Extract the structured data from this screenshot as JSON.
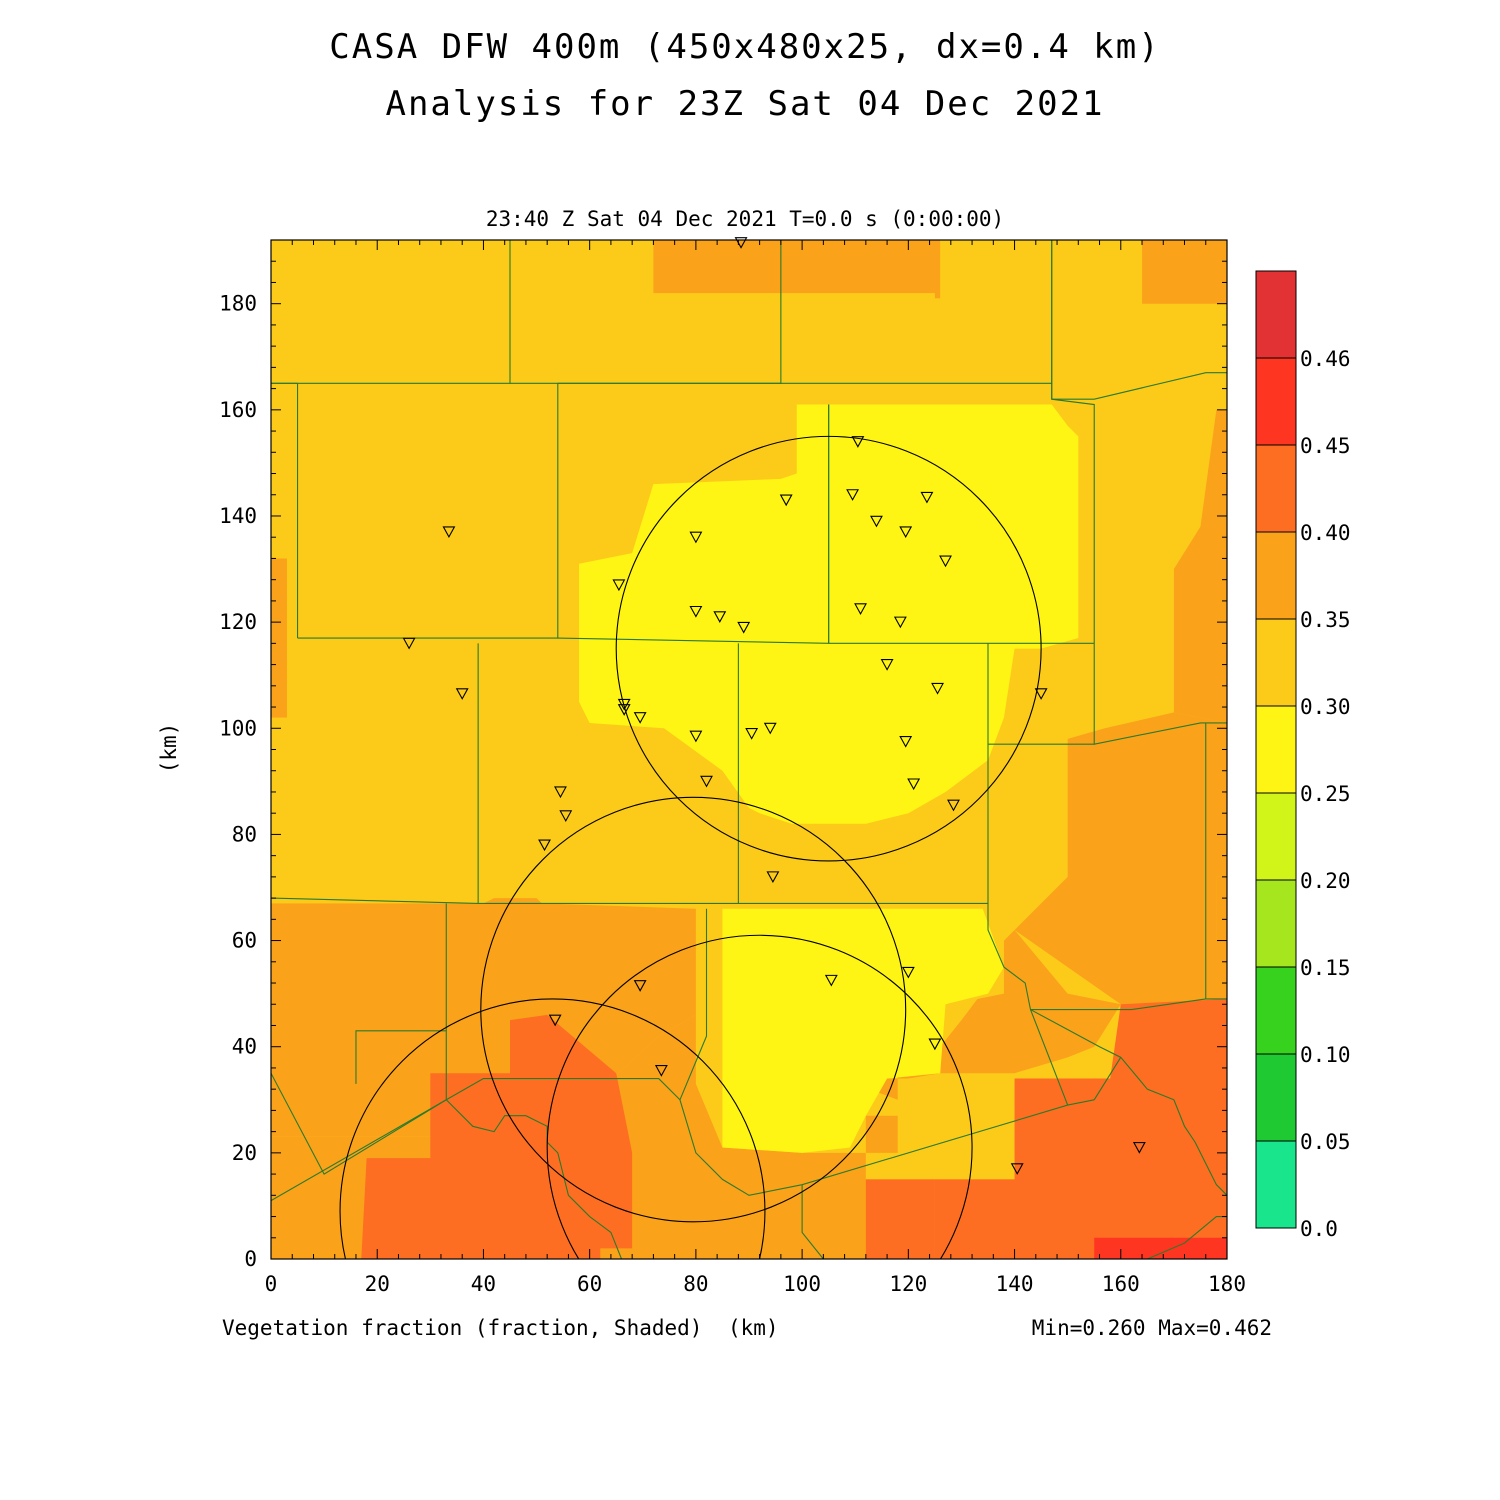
{
  "chart_data": {
    "type": "heatmap",
    "title": "CASA DFW 400m (450x480x25, dx=0.4 km)",
    "subtitle": "Analysis for 23Z Sat 04 Dec 2021",
    "time_label": "23:40 Z Sat 04 Dec 2021    T=0.0 s (0:00:00)",
    "variable_label": "Vegetation fraction (fraction, Shaded)",
    "xlabel": "(km)",
    "ylabel": "(km)",
    "stats_label": "Min=0.260 Max=0.462",
    "xlim": [
      0,
      180
    ],
    "ylim": [
      0,
      192
    ],
    "xticks": [
      0,
      20,
      40,
      60,
      80,
      100,
      120,
      140,
      160,
      180
    ],
    "yticks": [
      0,
      20,
      40,
      60,
      80,
      100,
      120,
      140,
      160,
      180
    ],
    "colorbar": {
      "levels": [
        "0.0",
        "0.05",
        "0.10",
        "0.15",
        "0.20",
        "0.25",
        "0.30",
        "0.35",
        "0.40",
        "0.45",
        "0.46"
      ],
      "colors": [
        "#19e68c",
        "#1ec932",
        "#37d21e",
        "#a5e61e",
        "#d2f519",
        "#fff514",
        "#fccb1a",
        "#fba21b",
        "#fd6e22",
        "#fe3520",
        "#e33233"
      ]
    },
    "regions": [
      {
        "value_bin": "0.30-0.35",
        "polygon": [
          [
            0,
            0
          ],
          [
            180,
            0
          ],
          [
            180,
            192
          ],
          [
            0,
            192
          ]
        ]
      },
      {
        "value_bin": "0.35-0.40",
        "polygon": [
          [
            72,
            182
          ],
          [
            125,
            182
          ],
          [
            125,
            181
          ],
          [
            126,
            181
          ],
          [
            126,
            192
          ],
          [
            72,
            192
          ]
        ]
      },
      {
        "value_bin": "0.35-0.40",
        "polygon": [
          [
            164,
            180
          ],
          [
            180,
            180
          ],
          [
            180,
            192
          ],
          [
            164,
            192
          ]
        ]
      },
      {
        "value_bin": "0.35-0.40",
        "polygon": [
          [
            0,
            67
          ],
          [
            40,
            67
          ],
          [
            42,
            68
          ],
          [
            50,
            68
          ],
          [
            51,
            67
          ],
          [
            80,
            66
          ],
          [
            80,
            46
          ],
          [
            73,
            42
          ],
          [
            60,
            30
          ],
          [
            52,
            26
          ],
          [
            50,
            23
          ],
          [
            0,
            23
          ]
        ]
      },
      {
        "value_bin": "0.35-0.40",
        "polygon": [
          [
            0,
            23
          ],
          [
            50,
            23
          ],
          [
            52,
            26
          ],
          [
            60,
            30
          ],
          [
            73,
            42
          ],
          [
            80,
            46
          ],
          [
            80,
            33
          ],
          [
            85,
            21
          ],
          [
            100,
            20
          ],
          [
            118,
            20
          ],
          [
            118,
            27
          ],
          [
            112,
            27
          ],
          [
            112,
            15
          ],
          [
            140,
            15
          ],
          [
            140,
            0
          ],
          [
            0,
            0
          ]
        ]
      },
      {
        "value_bin": "0.35-0.40",
        "polygon": [
          [
            140,
            15
          ],
          [
            140,
            33
          ],
          [
            160,
            34
          ],
          [
            160,
            48
          ],
          [
            174,
            50
          ],
          [
            180,
            50
          ],
          [
            180,
            60
          ],
          [
            178,
            60
          ],
          [
            178,
            72
          ],
          [
            180,
            72
          ],
          [
            180,
            0
          ],
          [
            140,
            0
          ]
        ]
      },
      {
        "value_bin": "0.35-0.40",
        "polygon": [
          [
            138,
            60
          ],
          [
            138,
            50
          ],
          [
            133,
            49
          ],
          [
            130,
            45
          ],
          [
            126,
            40
          ],
          [
            126,
            35
          ],
          [
            120,
            34
          ],
          [
            116,
            34
          ],
          [
            110,
            33
          ],
          [
            118,
            30
          ],
          [
            118,
            35
          ],
          [
            140,
            35
          ],
          [
            150,
            38
          ],
          [
            155,
            40
          ],
          [
            160,
            48
          ],
          [
            150,
            50
          ],
          [
            140,
            62
          ]
        ]
      },
      {
        "value_bin": "0.35-0.40",
        "polygon": [
          [
            140,
            62
          ],
          [
            150,
            72
          ],
          [
            150,
            98
          ],
          [
            157,
            100
          ],
          [
            170,
            103
          ],
          [
            180,
            101
          ],
          [
            180,
            72
          ],
          [
            178,
            72
          ],
          [
            178,
            60
          ],
          [
            180,
            60
          ],
          [
            180,
            50
          ],
          [
            160,
            48
          ]
        ]
      },
      {
        "value_bin": "0.35-0.40",
        "polygon": [
          [
            170,
            103
          ],
          [
            170,
            130
          ],
          [
            175,
            138
          ],
          [
            178,
            160
          ],
          [
            180,
            160
          ],
          [
            180,
            101
          ]
        ]
      },
      {
        "value_bin": "0.35-0.40",
        "polygon": [
          [
            0,
            102
          ],
          [
            3,
            102
          ],
          [
            3,
            132
          ],
          [
            0,
            132
          ]
        ]
      },
      {
        "value_bin": "0.40-0.45",
        "polygon": [
          [
            30,
            35
          ],
          [
            45,
            35
          ],
          [
            45,
            45
          ],
          [
            52,
            46
          ],
          [
            65,
            35
          ],
          [
            68,
            20
          ],
          [
            68,
            2
          ],
          [
            62,
            2
          ],
          [
            62,
            0
          ],
          [
            17,
            0
          ],
          [
            18,
            19
          ],
          [
            30,
            19
          ]
        ]
      },
      {
        "value_bin": "0.40-0.45",
        "polygon": [
          [
            112,
            15
          ],
          [
            125,
            15
          ],
          [
            125,
            0
          ],
          [
            112,
            0
          ]
        ]
      },
      {
        "value_bin": "0.40-0.45",
        "polygon": [
          [
            125,
            15
          ],
          [
            140,
            15
          ],
          [
            140,
            34
          ],
          [
            158,
            34
          ],
          [
            160,
            48
          ],
          [
            180,
            49
          ],
          [
            180,
            0
          ],
          [
            125,
            0
          ]
        ]
      },
      {
        "value_bin": "0.45-0.46",
        "polygon": [
          [
            155,
            0
          ],
          [
            180,
            0
          ],
          [
            180,
            4
          ],
          [
            155,
            4
          ]
        ]
      },
      {
        "value_bin": "0.25-0.30",
        "polygon": [
          [
            99,
            161
          ],
          [
            147,
            161
          ],
          [
            150,
            157
          ],
          [
            152,
            155
          ],
          [
            152,
            117
          ],
          [
            145,
            115
          ],
          [
            140,
            115
          ],
          [
            138,
            102
          ],
          [
            135,
            94
          ],
          [
            127,
            88
          ],
          [
            120,
            84
          ],
          [
            112,
            82
          ],
          [
            98,
            82
          ],
          [
            92,
            84
          ],
          [
            90,
            85
          ],
          [
            85,
            92
          ],
          [
            74,
            100
          ],
          [
            60,
            101
          ],
          [
            58,
            105
          ],
          [
            58,
            131
          ],
          [
            68,
            133
          ],
          [
            72,
            146
          ],
          [
            96,
            147
          ],
          [
            99,
            148
          ]
        ]
      },
      {
        "value_bin": "0.25-0.30",
        "polygon": [
          [
            85,
            66
          ],
          [
            134,
            66
          ],
          [
            138,
            55
          ],
          [
            135,
            50
          ],
          [
            127,
            48
          ],
          [
            126,
            35
          ],
          [
            116,
            34
          ],
          [
            112,
            27
          ],
          [
            109,
            21
          ],
          [
            100,
            20
          ],
          [
            85,
            21
          ]
        ]
      }
    ],
    "county_lines": [
      [
        [
          0,
          165
        ],
        [
          45,
          165
        ],
        [
          45,
          192
        ]
      ],
      [
        [
          45,
          165
        ],
        [
          96,
          165
        ],
        [
          96,
          192
        ]
      ],
      [
        [
          96,
          165
        ],
        [
          147,
          165
        ],
        [
          147,
          192
        ]
      ],
      [
        [
          147,
          162
        ],
        [
          155,
          162
        ],
        [
          176,
          167
        ],
        [
          180,
          167
        ]
      ],
      [
        [
          5,
          117
        ],
        [
          5,
          165
        ]
      ],
      [
        [
          5,
          117
        ],
        [
          54,
          117
        ],
        [
          54,
          165
        ]
      ],
      [
        [
          54,
          165
        ],
        [
          96,
          165
        ]
      ],
      [
        [
          54,
          117
        ],
        [
          105,
          116
        ],
        [
          105,
          161
        ]
      ],
      [
        [
          105,
          116
        ],
        [
          155,
          116
        ]
      ],
      [
        [
          155,
          116
        ],
        [
          155,
          161
        ],
        [
          147,
          162
        ],
        [
          147,
          192
        ]
      ],
      [
        [
          105,
          116
        ],
        [
          105,
          161
        ]
      ],
      [
        [
          147,
          162
        ],
        [
          147,
          165
        ]
      ],
      [
        [
          39,
          116
        ],
        [
          39,
          67
        ]
      ],
      [
        [
          39,
          67
        ],
        [
          88,
          67
        ],
        [
          88,
          116
        ]
      ],
      [
        [
          0,
          68
        ],
        [
          39,
          67
        ]
      ],
      [
        [
          88,
          67
        ],
        [
          135,
          67
        ],
        [
          135,
          116
        ]
      ],
      [
        [
          135,
          97
        ],
        [
          155,
          97
        ],
        [
          155,
          116
        ]
      ],
      [
        [
          155,
          97
        ],
        [
          175,
          101
        ],
        [
          180,
          101
        ]
      ],
      [
        [
          176,
          101
        ],
        [
          176,
          49
        ],
        [
          180,
          49
        ]
      ],
      [
        [
          135,
          67
        ],
        [
          135,
          62
        ],
        [
          138,
          55
        ],
        [
          142,
          52
        ],
        [
          143,
          47
        ],
        [
          162,
          47
        ],
        [
          176,
          49
        ]
      ],
      [
        [
          0,
          11
        ],
        [
          33,
          30
        ],
        [
          33,
          43
        ],
        [
          16,
          43
        ],
        [
          16,
          33
        ]
      ],
      [
        [
          33,
          43
        ],
        [
          33,
          67
        ]
      ],
      [
        [
          0,
          35
        ],
        [
          10,
          16
        ],
        [
          33,
          30
        ],
        [
          40,
          34
        ],
        [
          73,
          34
        ],
        [
          77,
          30
        ],
        [
          80,
          20
        ],
        [
          85,
          15
        ],
        [
          90,
          12
        ],
        [
          100,
          14
        ],
        [
          150,
          29
        ],
        [
          155,
          30
        ]
      ],
      [
        [
          33,
          30
        ],
        [
          38,
          25
        ],
        [
          42,
          24
        ],
        [
          44,
          27
        ],
        [
          48,
          27
        ],
        [
          52,
          25
        ],
        [
          52,
          22
        ],
        [
          54,
          20
        ],
        [
          55,
          16
        ],
        [
          56,
          12
        ],
        [
          60,
          8
        ],
        [
          64,
          5
        ],
        [
          66,
          0
        ]
      ],
      [
        [
          82,
          66
        ],
        [
          82,
          42
        ],
        [
          77,
          30
        ]
      ],
      [
        [
          143,
          47
        ],
        [
          156,
          40
        ],
        [
          160,
          38
        ],
        [
          165,
          32
        ],
        [
          170,
          30
        ],
        [
          172,
          25
        ],
        [
          174,
          22
        ],
        [
          176,
          18
        ],
        [
          178,
          14
        ],
        [
          180,
          12
        ]
      ],
      [
        [
          150,
          29
        ],
        [
          143,
          47
        ]
      ],
      [
        [
          160,
          38
        ],
        [
          155,
          30
        ]
      ],
      [
        [
          100,
          14
        ],
        [
          100,
          5
        ],
        [
          104,
          0
        ]
      ],
      [
        [
          165,
          0
        ],
        [
          172,
          3
        ],
        [
          178,
          8
        ],
        [
          180,
          8
        ]
      ],
      [
        [
          0,
          165
        ],
        [
          5,
          165
        ]
      ]
    ],
    "range_rings": [
      {
        "cx": 105,
        "cy": 115,
        "r": 40
      },
      {
        "cx": 79.5,
        "cy": 47,
        "r": 40
      },
      {
        "cx": 53,
        "cy": 9,
        "r": 40
      },
      {
        "cx": 92,
        "cy": 21,
        "r": 40
      }
    ],
    "stations": [
      [
        88.5,
        191.5
      ],
      [
        110.5,
        154
      ],
      [
        97,
        143
      ],
      [
        109.5,
        144
      ],
      [
        123.5,
        143.5
      ],
      [
        114,
        139
      ],
      [
        119.5,
        137
      ],
      [
        80,
        136
      ],
      [
        127,
        131.5
      ],
      [
        65.5,
        127
      ],
      [
        33.5,
        137
      ],
      [
        80,
        122
      ],
      [
        84.5,
        121
      ],
      [
        89,
        119
      ],
      [
        111,
        122.5
      ],
      [
        118.5,
        120
      ],
      [
        26,
        116
      ],
      [
        116,
        112
      ],
      [
        125.5,
        107.5
      ],
      [
        36,
        106.5
      ],
      [
        145,
        106.5
      ],
      [
        66.5,
        104.5
      ],
      [
        66.5,
        103.5
      ],
      [
        69.5,
        102
      ],
      [
        80,
        98.5
      ],
      [
        90.5,
        99
      ],
      [
        94,
        100
      ],
      [
        119.5,
        97.5
      ],
      [
        82,
        90
      ],
      [
        121,
        89.5
      ],
      [
        128.5,
        85.5
      ],
      [
        54.5,
        88
      ],
      [
        55.5,
        83.5
      ],
      [
        51.5,
        78
      ],
      [
        94.5,
        72
      ],
      [
        69.5,
        51.5
      ],
      [
        105.5,
        52.5
      ],
      [
        120,
        54
      ],
      [
        53.5,
        45
      ],
      [
        125,
        40.5
      ],
      [
        73.5,
        35.5
      ],
      [
        140.5,
        17
      ],
      [
        163.5,
        21
      ]
    ]
  }
}
